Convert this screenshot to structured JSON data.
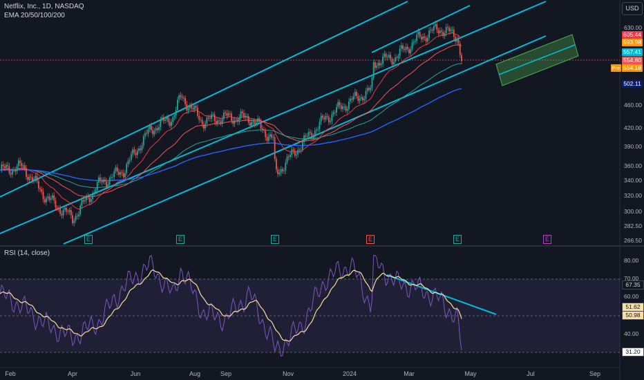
{
  "header": {
    "title": "Netflix, Inc., 1D, NASDAQ",
    "indicator": "EMA 20/50/100/200",
    "currency_button": "USD"
  },
  "rsi_panel": {
    "label": "RSI (14, close)"
  },
  "colors": {
    "background": "#131722",
    "channel": "#00bcd4",
    "ema20": "#f23645",
    "ema50": "#ff5252",
    "ema100": "#26a69a",
    "ema200": "#2962ff",
    "rsi": "#7e57c2",
    "rsi_ma": "#f9dfa0",
    "up": "#26a69a",
    "down": "#ef5350",
    "projection_box": "#4caf50"
  },
  "price_axis": {
    "ticks": [
      "630.00",
      "460.00",
      "420.00",
      "390.00",
      "360.00",
      "340.00",
      "320.00",
      "300.00",
      "282.50",
      "266.50"
    ],
    "tags": [
      {
        "value": "605.44",
        "color": "#f23645"
      },
      {
        "value": "593.98",
        "color": "#ff9800"
      },
      {
        "value": "557.41",
        "color": "#00bcd4"
      },
      {
        "value": "554.80",
        "color": "#ef5350"
      },
      {
        "value": "554.18",
        "color": "#ff9800"
      },
      {
        "value": "502.11",
        "color": "#0b1e62"
      }
    ],
    "pre_label": "Pre"
  },
  "rsi_axis": {
    "ticks": [
      "80.00",
      "70.00",
      "60.00",
      "40.00"
    ],
    "tags": [
      {
        "value": "67.35",
        "color": "#131722",
        "text_color": "#d1d4dc"
      },
      {
        "value": "51.62",
        "color": "#f9dfa0",
        "text_color": "#131722"
      },
      {
        "value": "50.98",
        "color": "#f9dfa0",
        "text_color": "#131722"
      },
      {
        "value": "31.20",
        "color": "#ffffff",
        "text_color": "#131722"
      }
    ]
  },
  "time_axis": {
    "labels": [
      "Feb",
      "Apr",
      "Jun",
      "Aug",
      "Sep",
      "Nov",
      "2024",
      "Mar",
      "May",
      "Jul",
      "Sep"
    ]
  },
  "earnings_markers": [
    "E",
    "E",
    "E",
    "E",
    "E",
    "E"
  ],
  "chart_data": {
    "type": "line",
    "title": "Netflix, Inc., 1D, NASDAQ",
    "x": [
      "2023-01-24",
      "2023-02-15",
      "2023-03-10",
      "2023-04-05",
      "2023-05-01",
      "2023-05-25",
      "2023-06-20",
      "2023-07-12",
      "2023-07-20",
      "2023-08-10",
      "2023-09-01",
      "2023-09-25",
      "2023-10-18",
      "2023-10-20",
      "2023-11-15",
      "2023-12-08",
      "2024-01-02",
      "2024-01-22",
      "2024-01-24",
      "2024-02-15",
      "2024-03-08",
      "2024-03-28",
      "2024-04-15",
      "2024-04-19"
    ],
    "series": [
      {
        "values": [
          355,
          360,
          318,
          292,
          336,
          355,
          418,
          440,
          478,
          432,
          440,
          438,
          402,
          348,
          395,
          438,
          470,
          490,
          548,
          562,
          605,
          630,
          610,
          554
        ]
      }
    ],
    "ylim": [
      266.5,
      640
    ],
    "log_scale": true,
    "grid": false,
    "rsi": {
      "label": "RSI (14, close)",
      "values": [
        62,
        55,
        45,
        38,
        47,
        66,
        78,
        61,
        76,
        52,
        48,
        62,
        35,
        30,
        45,
        70,
        78,
        55,
        80,
        68,
        65,
        59,
        48,
        31.2
      ],
      "ylim": [
        25,
        85
      ]
    }
  }
}
